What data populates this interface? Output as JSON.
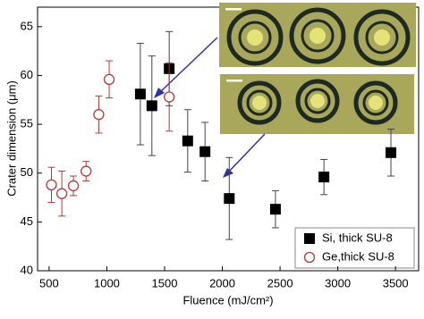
{
  "chart_data": {
    "type": "scatter",
    "x_label": "Fluence (mJ/cm²)",
    "y_label": "Crater dimension (μm)",
    "xlim": [
      400,
      3700
    ],
    "ylim": [
      40,
      67
    ],
    "xticks": [
      500,
      1000,
      1500,
      2000,
      2500,
      3000,
      3500
    ],
    "yticks": [
      40,
      45,
      50,
      55,
      60,
      65
    ],
    "legend": "lower right",
    "series": [
      {
        "name": "Si, thick SU-8",
        "color": "#000000",
        "marker": "square",
        "x": [
          1290,
          1390,
          1540,
          1700,
          1850,
          2060,
          2460,
          2880,
          3460
        ],
        "values": [
          58.1,
          56.9,
          60.7,
          53.3,
          52.2,
          47.4,
          46.3,
          49.6,
          52.1
        ],
        "errors": [
          5.2,
          5.1,
          3.8,
          3.2,
          3.0,
          4.2,
          1.9,
          1.8,
          2.4
        ]
      },
      {
        "name": "Ge,thick SU-8",
        "color": "#b03a3a",
        "marker": "circle",
        "x": [
          520,
          610,
          710,
          820,
          930,
          1020,
          1540
        ],
        "values": [
          48.8,
          47.9,
          48.7,
          50.2,
          56.0,
          59.6,
          57.8
        ],
        "errors": [
          1.8,
          2.3,
          1.0,
          1.0,
          1.9,
          1.9,
          3.5
        ]
      }
    ]
  }
}
